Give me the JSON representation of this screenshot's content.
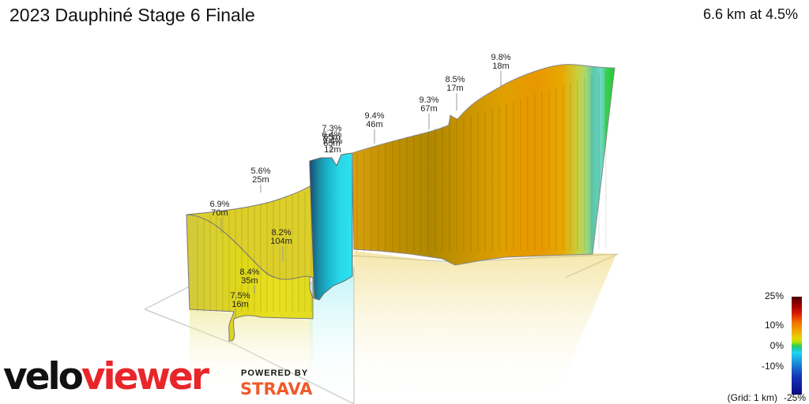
{
  "header": {
    "title": "2023 Dauphiné Stage 6 Finale",
    "summary": "6.6 km at 4.5%"
  },
  "legend": {
    "labels": [
      "25%",
      "10%",
      "0%",
      "-10%",
      "-25%"
    ],
    "grid_note": "(Grid: 1 km)"
  },
  "branding": {
    "logo_part1": "velo",
    "logo_part2": "viewer",
    "powered_by": "POWERED BY",
    "partner": "STRAVA"
  },
  "chart_data": {
    "type": "area",
    "title": "2023 Dauphiné Stage 6 Finale",
    "summary": "6.6 km at 4.5%",
    "grid": true,
    "legend_placement": "bottom-right",
    "color_scale": {
      "min_percent": -25,
      "max_percent": 25,
      "tick_labels": [
        "25%",
        "10%",
        "0%",
        "-10%",
        "-25%"
      ]
    },
    "annotations": [
      {
        "grade": "7.5%",
        "length": "16m"
      },
      {
        "grade": "8.4%",
        "length": "35m"
      },
      {
        "grade": "8.2%",
        "length": "104m"
      },
      {
        "grade": "6.9%",
        "length": "70m"
      },
      {
        "grade": "5.6%",
        "length": "25m"
      },
      {
        "grade": "7.3%",
        "length": "65m"
      },
      {
        "grade": "6.4%",
        "length": "65m"
      },
      {
        "grade": "9.4%",
        "length": "12m"
      },
      {
        "grade": "9.4%",
        "length": "46m"
      },
      {
        "grade": "9.3%",
        "length": "67m"
      },
      {
        "grade": "8.5%",
        "length": "17m"
      },
      {
        "grade": "9.8%",
        "length": "18m"
      }
    ]
  }
}
